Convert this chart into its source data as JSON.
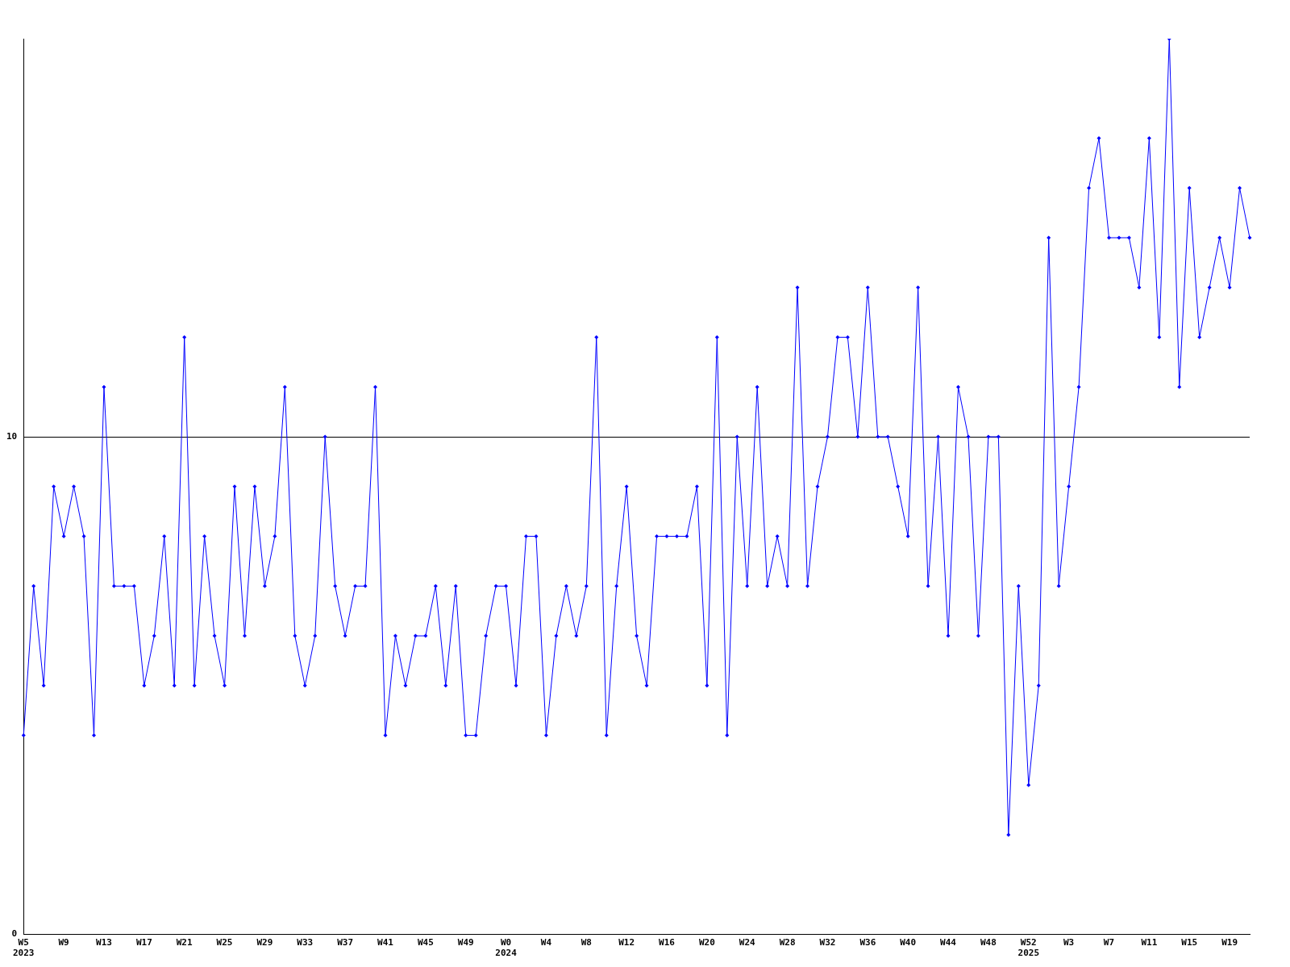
{
  "chart_data": {
    "type": "line",
    "categories": [
      "W5\n2023",
      null,
      null,
      null,
      "W9",
      null,
      null,
      null,
      "W13",
      null,
      null,
      null,
      "W17",
      null,
      null,
      null,
      "W21",
      null,
      null,
      null,
      "W25",
      null,
      null,
      null,
      "W29",
      null,
      null,
      null,
      "W33",
      null,
      null,
      null,
      "W37",
      null,
      null,
      null,
      "W41",
      null,
      null,
      null,
      "W45",
      null,
      null,
      null,
      "W49",
      null,
      null,
      null,
      "W0\n2024",
      null,
      null,
      null,
      "W4",
      null,
      null,
      null,
      "W8",
      null,
      null,
      null,
      "W12",
      null,
      null,
      null,
      "W16",
      null,
      null,
      null,
      "W20",
      null,
      null,
      null,
      "W24",
      null,
      null,
      null,
      "W28",
      null,
      null,
      null,
      "W32",
      null,
      null,
      null,
      "W36",
      null,
      null,
      null,
      "W40",
      null,
      null,
      null,
      "W44",
      null,
      null,
      null,
      "W48",
      null,
      null,
      null,
      "W52\n2025",
      null,
      null,
      null,
      "W3",
      null,
      null,
      null,
      "W7",
      null,
      null,
      null,
      "W11",
      null,
      null,
      null,
      "W15",
      null,
      null,
      null,
      "W19",
      null,
      null
    ],
    "series": [
      {
        "color": "#0000ff",
        "values": [
          4,
          7,
          5,
          9,
          8,
          9,
          8,
          4,
          11,
          7,
          7,
          7,
          5,
          6,
          8,
          5,
          12,
          5,
          8,
          6,
          5,
          9,
          6,
          9,
          7,
          8,
          11,
          6,
          5,
          6,
          10,
          7,
          6,
          7,
          7,
          11,
          4,
          6,
          5,
          6,
          6,
          7,
          5,
          7,
          4,
          4,
          6,
          7,
          7,
          5,
          8,
          8,
          4,
          6,
          7,
          6,
          7,
          12,
          4,
          7,
          9,
          6,
          5,
          8,
          8,
          8,
          8,
          9,
          5,
          12,
          4,
          10,
          7,
          11,
          7,
          8,
          7,
          13,
          7,
          9,
          10,
          12,
          12,
          10,
          13,
          10,
          10,
          9,
          8,
          13,
          7,
          10,
          6,
          11,
          10,
          6,
          10,
          10,
          2,
          7,
          3,
          5,
          14,
          7,
          9,
          11,
          15,
          16,
          14,
          14,
          14,
          13,
          16,
          12,
          18,
          11,
          15,
          12,
          13,
          14,
          13,
          15,
          14
        ]
      }
    ],
    "ylim": [
      0,
      18
    ],
    "yticks": [
      0,
      10
    ],
    "grid": "y",
    "legend": false,
    "marker": "diamond",
    "line_style": "solid"
  }
}
